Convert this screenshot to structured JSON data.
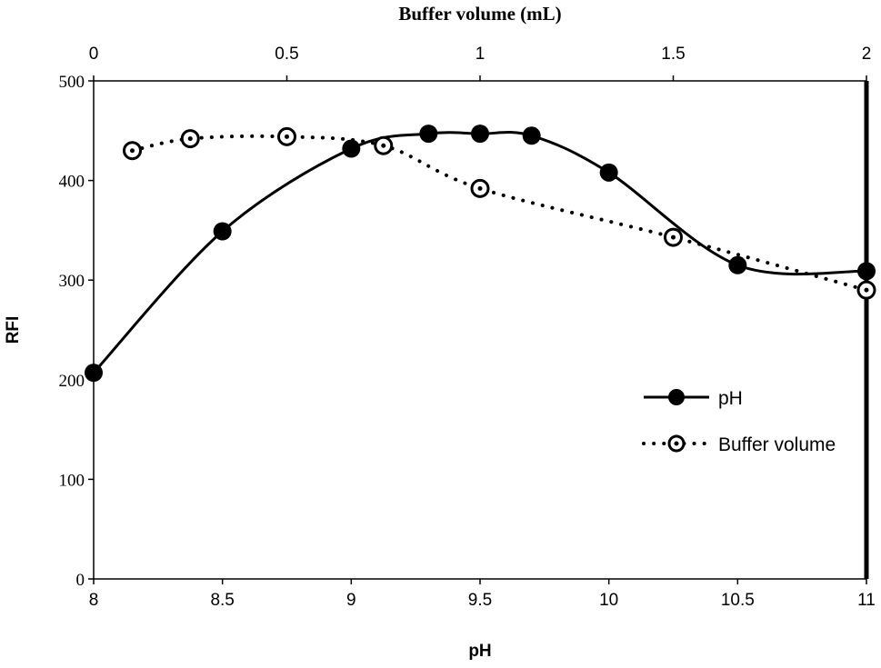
{
  "chart_data": {
    "type": "line",
    "title": "",
    "xlabel": "pH",
    "x2label": "Buffer volume (mL)",
    "ylabel": "RFI",
    "xlim": [
      8,
      11
    ],
    "x2lim": [
      0,
      2
    ],
    "ylim": [
      0,
      500
    ],
    "xticks": [
      "8",
      "8.5",
      "9",
      "9.5",
      "10",
      "10.5",
      "11"
    ],
    "x2ticks": [
      "0",
      "0.5",
      "1",
      "1.5",
      "2"
    ],
    "yticks": [
      "0",
      "100",
      "200",
      "300",
      "400",
      "500"
    ],
    "grid": false,
    "legend_position": "right",
    "series": [
      {
        "name": "pH",
        "axis": "bottom",
        "style": "solid-filled-circle",
        "x": [
          8,
          8.5,
          9,
          9.3,
          9.5,
          9.7,
          10,
          10.5,
          11
        ],
        "y": [
          207,
          349,
          432,
          447,
          447,
          445,
          408,
          315,
          309
        ]
      },
      {
        "name": "Buffer volume",
        "axis": "top",
        "style": "dotted-open-circle",
        "x": [
          0.1,
          0.25,
          0.5,
          0.75,
          1.0,
          1.5,
          2.0
        ],
        "y": [
          430,
          442,
          444,
          435,
          392,
          343,
          290
        ]
      }
    ]
  }
}
